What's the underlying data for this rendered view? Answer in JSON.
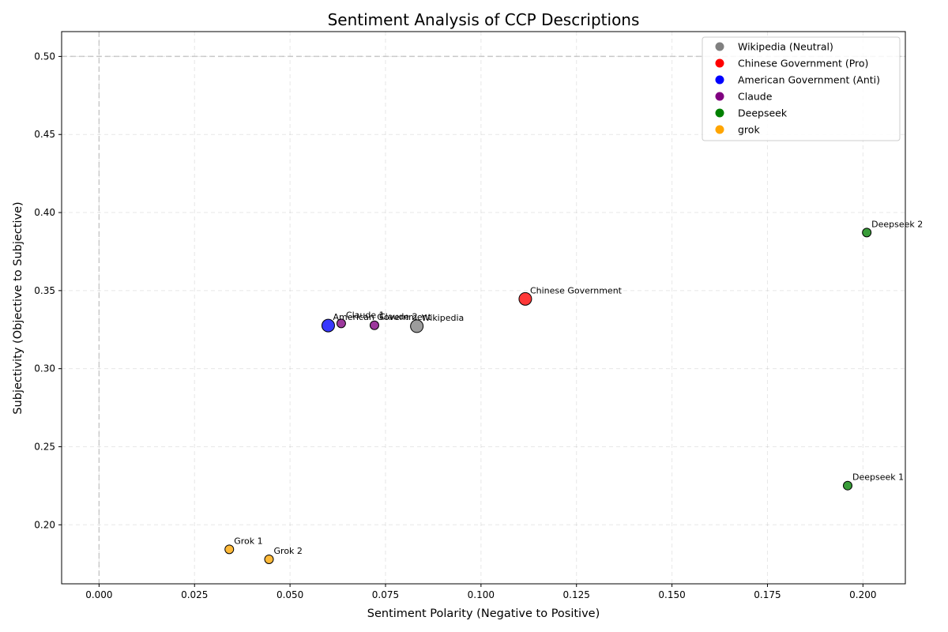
{
  "chart_data": {
    "type": "scatter",
    "title": "Sentiment Analysis of CCP Descriptions",
    "xlabel": "Sentiment Polarity (Negative to Positive)",
    "ylabel": "Subjectivity (Objective to Subjective)",
    "xlim": [
      -0.0098,
      0.2111
    ],
    "ylim": [
      0.1622,
      0.5159
    ],
    "xticks": [
      "0.000",
      "0.025",
      "0.050",
      "0.075",
      "0.100",
      "0.125",
      "0.150",
      "0.175",
      "0.200"
    ],
    "xtick_values": [
      0,
      0.025,
      0.05,
      0.075,
      0.1,
      0.125,
      0.15,
      0.175,
      0.2
    ],
    "yticks": [
      "0.20",
      "0.25",
      "0.30",
      "0.35",
      "0.40",
      "0.45",
      "0.50"
    ],
    "ytick_values": [
      0.2,
      0.25,
      0.3,
      0.35,
      0.4,
      0.45,
      0.5
    ],
    "grid": true,
    "reference_lines": {
      "x": 0,
      "y": 0.5
    },
    "legend_position": "top-right",
    "legend": [
      {
        "label": "Wikipedia (Neutral)",
        "color": "#808080"
      },
      {
        "label": "Chinese Government (Pro)",
        "color": "#ff0000"
      },
      {
        "label": "American Government (Anti)",
        "color": "#0000ff"
      },
      {
        "label": "Claude",
        "color": "#800080"
      },
      {
        "label": "Deepseek",
        "color": "#008000"
      },
      {
        "label": "grok",
        "color": "#ffa500"
      }
    ],
    "points": [
      {
        "label": "Wikipedia",
        "x": 0.0832,
        "y": 0.3272,
        "color": "#808080",
        "size": "large"
      },
      {
        "label": "Chinese Government",
        "x": 0.1116,
        "y": 0.3447,
        "color": "#ff0000",
        "size": "large"
      },
      {
        "label": "American Government",
        "x": 0.06,
        "y": 0.3276,
        "color": "#0000ff",
        "size": "large"
      },
      {
        "label": "Claude 1",
        "x": 0.0634,
        "y": 0.329,
        "color": "#800080",
        "size": "small"
      },
      {
        "label": "Claude 2",
        "x": 0.0721,
        "y": 0.3278,
        "color": "#800080",
        "size": "small"
      },
      {
        "label": "Deepseek 1",
        "x": 0.196,
        "y": 0.2251,
        "color": "#008000",
        "size": "small"
      },
      {
        "label": "Deepseek 2",
        "x": 0.201,
        "y": 0.3872,
        "color": "#008000",
        "size": "small"
      },
      {
        "label": "Grok 1",
        "x": 0.0341,
        "y": 0.1843,
        "color": "#ffa500",
        "size": "small"
      },
      {
        "label": "Grok 2",
        "x": 0.0445,
        "y": 0.1779,
        "color": "#ffa500",
        "size": "small"
      }
    ]
  }
}
